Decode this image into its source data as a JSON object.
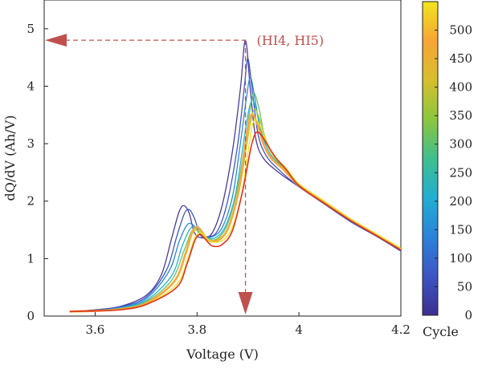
{
  "chart_data": {
    "type": "line",
    "title": "",
    "xlabel": "Voltage (V)",
    "ylabel": "dQ/dV (Ah/V)",
    "xlim": [
      3.5,
      4.2
    ],
    "ylim": [
      0,
      5.5
    ],
    "xticks": [
      3.6,
      3.8,
      4,
      4.2
    ],
    "xtick_labels": [
      "3.6",
      "3.8",
      "4",
      "4.2"
    ],
    "yticks": [
      0,
      1,
      2,
      3,
      4,
      5
    ],
    "ytick_labels": [
      "0",
      "1",
      "2",
      "3",
      "4",
      "5"
    ],
    "grid": false,
    "colorbar": {
      "label": "Cycle",
      "min": 0,
      "max": 550,
      "ticks": [
        0,
        50,
        100,
        150,
        200,
        250,
        300,
        350,
        400,
        450,
        500
      ],
      "tick_labels": [
        "0",
        "50",
        "100",
        "150",
        "200",
        "250",
        "300",
        "350",
        "400",
        "450",
        "500"
      ],
      "colormap": [
        "#3b2f8f",
        "#3d55c4",
        "#2b82d9",
        "#22aed1",
        "#3fbf8f",
        "#8cc63e",
        "#d6bf2c",
        "#f7a535",
        "#f1e51d"
      ]
    },
    "annotation": {
      "text": "(HI4, HI5)",
      "point": [
        3.895,
        4.8
      ],
      "color": "#c0504d"
    },
    "series": [
      {
        "cycle": 0,
        "color": "#4a3a9c",
        "line_width": 1.3,
        "valley": 1.38,
        "x": [
          3.55,
          3.6,
          3.65,
          3.7,
          3.73,
          3.75,
          3.765,
          3.775,
          3.785,
          3.795,
          3.81,
          3.83,
          3.85,
          3.87,
          3.885,
          3.895,
          3.905,
          3.915,
          3.93,
          3.96,
          4.0,
          4.05,
          4.1,
          4.15,
          4.2
        ],
        "y": [
          0.08,
          0.11,
          0.17,
          0.36,
          0.72,
          1.35,
          1.82,
          1.92,
          1.78,
          1.45,
          1.36,
          1.45,
          1.95,
          2.9,
          3.95,
          4.8,
          3.9,
          3.1,
          2.75,
          2.5,
          2.25,
          1.95,
          1.65,
          1.4,
          1.13
        ]
      },
      {
        "cycle": 60,
        "color": "#3d55c4",
        "line_width": 1.3,
        "valley": 1.4,
        "x": [
          3.55,
          3.6,
          3.65,
          3.7,
          3.74,
          3.76,
          3.775,
          3.785,
          3.795,
          3.805,
          3.82,
          3.84,
          3.86,
          3.88,
          3.893,
          3.9,
          3.91,
          3.92,
          3.935,
          3.96,
          4.0,
          4.05,
          4.1,
          4.15,
          4.2
        ],
        "y": [
          0.08,
          0.1,
          0.16,
          0.33,
          0.8,
          1.38,
          1.78,
          1.85,
          1.7,
          1.45,
          1.38,
          1.48,
          2.0,
          3.0,
          4.0,
          4.48,
          3.8,
          3.15,
          2.8,
          2.55,
          2.25,
          1.95,
          1.65,
          1.4,
          1.14
        ]
      },
      {
        "cycle": 150,
        "color": "#2b8ad9",
        "line_width": 1.3,
        "valley": 1.38,
        "x": [
          3.55,
          3.6,
          3.65,
          3.7,
          3.745,
          3.765,
          3.78,
          3.79,
          3.8,
          3.81,
          3.83,
          3.85,
          3.87,
          3.885,
          3.897,
          3.905,
          3.915,
          3.925,
          3.94,
          3.965,
          4.0,
          4.05,
          4.1,
          4.15,
          4.2
        ],
        "y": [
          0.08,
          0.1,
          0.15,
          0.3,
          0.78,
          1.3,
          1.58,
          1.6,
          1.5,
          1.38,
          1.38,
          1.55,
          2.1,
          3.0,
          3.8,
          4.15,
          3.7,
          3.2,
          2.82,
          2.58,
          2.28,
          1.98,
          1.68,
          1.42,
          1.17
        ]
      },
      {
        "cycle": 250,
        "color": "#22b5cf",
        "line_width": 1.3,
        "valley": 1.35,
        "x": [
          3.55,
          3.6,
          3.65,
          3.7,
          3.75,
          3.77,
          3.785,
          3.795,
          3.805,
          3.815,
          3.835,
          3.855,
          3.875,
          3.89,
          3.902,
          3.91,
          3.92,
          3.93,
          3.945,
          3.97,
          4.0,
          4.05,
          4.1,
          4.15,
          4.2
        ],
        "y": [
          0.08,
          0.09,
          0.14,
          0.27,
          0.7,
          1.2,
          1.5,
          1.55,
          1.45,
          1.36,
          1.36,
          1.55,
          2.1,
          2.95,
          3.6,
          3.75,
          3.45,
          3.1,
          2.8,
          2.57,
          2.28,
          1.99,
          1.7,
          1.43,
          1.18
        ]
      },
      {
        "cycle": 330,
        "color": "#6ec262",
        "line_width": 1.3,
        "valley": 1.33,
        "x": [
          3.55,
          3.6,
          3.65,
          3.7,
          3.75,
          3.775,
          3.788,
          3.797,
          3.807,
          3.82,
          3.84,
          3.86,
          3.88,
          3.895,
          3.905,
          3.912,
          3.922,
          3.932,
          3.947,
          3.97,
          4.0,
          4.05,
          4.1,
          4.15,
          4.2
        ],
        "y": [
          0.08,
          0.09,
          0.13,
          0.25,
          0.62,
          1.15,
          1.45,
          1.52,
          1.44,
          1.34,
          1.35,
          1.6,
          2.25,
          3.05,
          3.65,
          3.88,
          3.6,
          3.15,
          2.82,
          2.58,
          2.27,
          1.97,
          1.68,
          1.42,
          1.17
        ]
      },
      {
        "cycle": 400,
        "color": "#b9c831",
        "line_width": 1.3,
        "valley": 1.32,
        "x": [
          3.55,
          3.6,
          3.65,
          3.7,
          3.755,
          3.778,
          3.79,
          3.8,
          3.81,
          3.822,
          3.842,
          3.862,
          3.882,
          3.897,
          3.907,
          3.914,
          3.924,
          3.934,
          3.95,
          3.975,
          4.0,
          4.05,
          4.1,
          4.15,
          4.2
        ],
        "y": [
          0.08,
          0.09,
          0.12,
          0.23,
          0.6,
          1.1,
          1.42,
          1.5,
          1.42,
          1.33,
          1.34,
          1.55,
          2.15,
          2.95,
          3.45,
          3.6,
          3.4,
          3.1,
          2.8,
          2.57,
          2.28,
          1.98,
          1.69,
          1.43,
          1.17
        ]
      },
      {
        "cycle": 450,
        "color": "#f5a83a",
        "line_width": 2.6,
        "valley": 1.3,
        "x": [
          3.55,
          3.6,
          3.65,
          3.7,
          3.755,
          3.778,
          3.79,
          3.8,
          3.81,
          3.822,
          3.842,
          3.862,
          3.882,
          3.895,
          3.903,
          3.91,
          3.92,
          3.93,
          3.945,
          3.97,
          4.0,
          4.05,
          4.1,
          4.15,
          4.2
        ],
        "y": [
          0.08,
          0.09,
          0.12,
          0.22,
          0.6,
          1.1,
          1.45,
          1.55,
          1.46,
          1.32,
          1.32,
          1.55,
          2.2,
          3.0,
          3.42,
          3.5,
          3.3,
          3.0,
          2.75,
          2.55,
          2.27,
          1.97,
          1.68,
          1.42,
          1.17
        ]
      },
      {
        "cycle": 520,
        "color": "#f2e21c",
        "line_width": 1.3,
        "valley": 1.28,
        "x": [
          3.55,
          3.6,
          3.65,
          3.7,
          3.76,
          3.782,
          3.795,
          3.805,
          3.815,
          3.827,
          3.847,
          3.867,
          3.887,
          3.9,
          3.908,
          3.915,
          3.925,
          3.935,
          3.95,
          3.975,
          4.0,
          4.05,
          4.1,
          4.15,
          4.2
        ],
        "y": [
          0.08,
          0.09,
          0.11,
          0.2,
          0.55,
          1.0,
          1.35,
          1.45,
          1.4,
          1.3,
          1.3,
          1.5,
          2.1,
          2.85,
          3.3,
          3.42,
          3.28,
          3.05,
          2.78,
          2.57,
          2.3,
          2.0,
          1.7,
          1.44,
          1.18
        ]
      },
      {
        "cycle": 550,
        "color": "#e2331c",
        "line_width": 1.6,
        "valley": 1.2,
        "x": [
          3.55,
          3.6,
          3.65,
          3.7,
          3.76,
          3.78,
          3.795,
          3.805,
          3.815,
          3.83,
          3.85,
          3.87,
          3.89,
          3.905,
          3.913,
          3.92,
          3.93,
          3.94,
          3.955,
          3.975,
          4.0,
          4.05,
          4.1,
          4.15,
          4.2
        ],
        "y": [
          0.08,
          0.09,
          0.11,
          0.2,
          0.5,
          0.9,
          1.3,
          1.42,
          1.35,
          1.22,
          1.25,
          1.5,
          2.2,
          2.9,
          3.15,
          3.2,
          3.1,
          2.95,
          2.75,
          2.55,
          2.27,
          1.96,
          1.67,
          1.41,
          1.15
        ]
      }
    ]
  }
}
